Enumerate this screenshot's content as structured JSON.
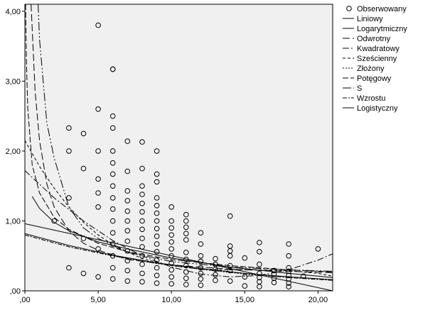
{
  "chart_data": {
    "type": "scatter",
    "title": "",
    "xlabel": "",
    "ylabel": "",
    "xlim": [
      0,
      21
    ],
    "ylim": [
      0,
      4.1
    ],
    "x_ticks": [
      {
        "value": 0,
        "label": ",00"
      },
      {
        "value": 5,
        "label": "5,00"
      },
      {
        "value": 10,
        "label": "10,00"
      },
      {
        "value": 15,
        "label": "15,00"
      },
      {
        "value": 20,
        "label": "20,00"
      }
    ],
    "y_ticks": [
      {
        "value": 0,
        "label": ",00"
      },
      {
        "value": 1,
        "label": "1,00"
      },
      {
        "value": 2,
        "label": "2,00"
      },
      {
        "value": 3,
        "label": "3,00"
      },
      {
        "value": 4,
        "label": "4,00"
      }
    ],
    "grid": false,
    "legend_position": "right",
    "plot_background": "#f0f0f0",
    "legend": [
      {
        "label": "Obserwowany",
        "marker": "circle"
      },
      {
        "label": "Liniowy",
        "dash": ""
      },
      {
        "label": "Logarytmiczny",
        "dash": ""
      },
      {
        "label": "Odwrotny",
        "dash": "10,4"
      },
      {
        "label": "Kwadratowy",
        "dash": "9,3,2,3"
      },
      {
        "label": "Sześcienny",
        "dash": "4,3"
      },
      {
        "label": "Złożony",
        "dash": "2,2"
      },
      {
        "label": "Potęgowy",
        "dash": "8,3"
      },
      {
        "label": "S",
        "dash": "12,3,2,3,2,3"
      },
      {
        "label": "Wzrostu",
        "dash": "6,2,2,2"
      },
      {
        "label": "Logistyczny",
        "dash": ""
      }
    ],
    "observed": [
      [
        2,
        1.0
      ],
      [
        3,
        2.33
      ],
      [
        3,
        2.0
      ],
      [
        3,
        1.33
      ],
      [
        3,
        0.33
      ],
      [
        4,
        2.25
      ],
      [
        4,
        1.75
      ],
      [
        4,
        0.75
      ],
      [
        4,
        0.25
      ],
      [
        5,
        3.8
      ],
      [
        5,
        2.6
      ],
      [
        5,
        2.0
      ],
      [
        5,
        1.6
      ],
      [
        5,
        1.4
      ],
      [
        5,
        1.2
      ],
      [
        5,
        0.6
      ],
      [
        5,
        0.2
      ],
      [
        6,
        3.17
      ],
      [
        6,
        3.17
      ],
      [
        6,
        2.5
      ],
      [
        6,
        2.33
      ],
      [
        6,
        2.0
      ],
      [
        6,
        1.83
      ],
      [
        6,
        1.67
      ],
      [
        6,
        1.5
      ],
      [
        6,
        1.33
      ],
      [
        6,
        1.17
      ],
      [
        6,
        1.0
      ],
      [
        6,
        0.83
      ],
      [
        6,
        0.67
      ],
      [
        6,
        0.5
      ],
      [
        6,
        0.33
      ],
      [
        6,
        0.17
      ],
      [
        7,
        2.14
      ],
      [
        7,
        1.71
      ],
      [
        7,
        1.43
      ],
      [
        7,
        1.29
      ],
      [
        7,
        1.14
      ],
      [
        7,
        1.0
      ],
      [
        7,
        0.86
      ],
      [
        7,
        0.71
      ],
      [
        7,
        0.57
      ],
      [
        7,
        0.43
      ],
      [
        7,
        0.29
      ],
      [
        7,
        0.14
      ],
      [
        8,
        2.13
      ],
      [
        8,
        1.75
      ],
      [
        8,
        1.5
      ],
      [
        8,
        1.38
      ],
      [
        8,
        1.25
      ],
      [
        8,
        1.13
      ],
      [
        8,
        1.0
      ],
      [
        8,
        0.88
      ],
      [
        8,
        0.75
      ],
      [
        8,
        0.63
      ],
      [
        8,
        0.5
      ],
      [
        8,
        0.38
      ],
      [
        8,
        0.25
      ],
      [
        8,
        0.13
      ],
      [
        9,
        2.0
      ],
      [
        9,
        1.67
      ],
      [
        9,
        1.56
      ],
      [
        9,
        1.33
      ],
      [
        9,
        1.22
      ],
      [
        9,
        1.11
      ],
      [
        9,
        1.0
      ],
      [
        9,
        0.89
      ],
      [
        9,
        0.78
      ],
      [
        9,
        0.67
      ],
      [
        9,
        0.56
      ],
      [
        9,
        0.44
      ],
      [
        9,
        0.33
      ],
      [
        9,
        0.22
      ],
      [
        9,
        0.11
      ],
      [
        10,
        1.2
      ],
      [
        10,
        1.0
      ],
      [
        10,
        0.9
      ],
      [
        10,
        0.8
      ],
      [
        10,
        0.7
      ],
      [
        10,
        0.6
      ],
      [
        10,
        0.5
      ],
      [
        10,
        0.4
      ],
      [
        10,
        0.3
      ],
      [
        10,
        0.2
      ],
      [
        10,
        0.1
      ],
      [
        11,
        1.09
      ],
      [
        11,
        1.0
      ],
      [
        11,
        0.91
      ],
      [
        11,
        0.82
      ],
      [
        11,
        0.73
      ],
      [
        11,
        0.55
      ],
      [
        11,
        0.45
      ],
      [
        11,
        0.36
      ],
      [
        11,
        0.27
      ],
      [
        11,
        0.18
      ],
      [
        11,
        0.09
      ],
      [
        12,
        0.83
      ],
      [
        12,
        0.67
      ],
      [
        12,
        0.5
      ],
      [
        12,
        0.42
      ],
      [
        12,
        0.33
      ],
      [
        12,
        0.25
      ],
      [
        12,
        0.17
      ],
      [
        12,
        0.08
      ],
      [
        13,
        0.46
      ],
      [
        13,
        0.38
      ],
      [
        13,
        0.31
      ],
      [
        13,
        0.23
      ],
      [
        13,
        0.15
      ],
      [
        14,
        1.07
      ],
      [
        14,
        0.64
      ],
      [
        14,
        0.57
      ],
      [
        14,
        0.5
      ],
      [
        14,
        0.36
      ],
      [
        14,
        0.29
      ],
      [
        14,
        0.14
      ],
      [
        15,
        0.47
      ],
      [
        15,
        0.2
      ],
      [
        15,
        0.07
      ],
      [
        16,
        0.69
      ],
      [
        16,
        0.56
      ],
      [
        16,
        0.38
      ],
      [
        16,
        0.25
      ],
      [
        16,
        0.19
      ],
      [
        16,
        0.13
      ],
      [
        16,
        0.06
      ],
      [
        17,
        0.29
      ],
      [
        17,
        0.24
      ],
      [
        17,
        0.18
      ],
      [
        17,
        0.12
      ],
      [
        18,
        0.67
      ],
      [
        18,
        0.5
      ],
      [
        18,
        0.33
      ],
      [
        18,
        0.28
      ],
      [
        18,
        0.22
      ],
      [
        18,
        0.17
      ],
      [
        18,
        0.11
      ],
      [
        18,
        0.06
      ],
      [
        19,
        0.21
      ],
      [
        20,
        0.6
      ]
    ],
    "fits": [
      {
        "name": "Liniowy",
        "dash": "",
        "points": [
          [
            0,
            0.96
          ],
          [
            21,
            0.0
          ]
        ]
      },
      {
        "name": "Logarytmiczny",
        "dash": "",
        "points": [
          [
            0.5,
            1.35
          ],
          [
            1,
            1.18
          ],
          [
            2,
            0.98
          ],
          [
            3,
            0.86
          ],
          [
            5,
            0.7
          ],
          [
            7,
            0.6
          ],
          [
            10,
            0.47
          ],
          [
            14,
            0.34
          ],
          [
            18,
            0.25
          ],
          [
            21,
            0.19
          ]
        ]
      },
      {
        "name": "Odwrotny",
        "dash": "10,4",
        "points": [
          [
            0.42,
            4.1
          ],
          [
            0.5,
            3.75
          ],
          [
            0.7,
            2.85
          ],
          [
            1,
            2.15
          ],
          [
            1.5,
            1.53
          ],
          [
            2,
            1.2
          ],
          [
            3,
            0.86
          ],
          [
            4,
            0.68
          ],
          [
            5,
            0.58
          ],
          [
            7,
            0.45
          ],
          [
            10,
            0.37
          ],
          [
            14,
            0.31
          ],
          [
            18,
            0.28
          ],
          [
            21,
            0.26
          ]
        ]
      },
      {
        "name": "Kwadratowy",
        "dash": "9,3,2,3",
        "points": [
          [
            0,
            1.72
          ],
          [
            2,
            1.33
          ],
          [
            4,
            1.0
          ],
          [
            6,
            0.72
          ],
          [
            8,
            0.5
          ],
          [
            10,
            0.34
          ],
          [
            12,
            0.24
          ],
          [
            14,
            0.2
          ],
          [
            16,
            0.22
          ],
          [
            18,
            0.3
          ],
          [
            20,
            0.44
          ],
          [
            21,
            0.53
          ]
        ]
      },
      {
        "name": "Sześcienny",
        "dash": "4,3",
        "points": [
          [
            0,
            2.15
          ],
          [
            1,
            1.78
          ],
          [
            2,
            1.47
          ],
          [
            3,
            1.2
          ],
          [
            4,
            0.98
          ],
          [
            5,
            0.8
          ],
          [
            6,
            0.66
          ],
          [
            8,
            0.46
          ],
          [
            10,
            0.36
          ],
          [
            12,
            0.31
          ],
          [
            14,
            0.3
          ],
          [
            16,
            0.3
          ],
          [
            18,
            0.29
          ],
          [
            20,
            0.25
          ],
          [
            21,
            0.21
          ]
        ]
      },
      {
        "name": "Złożony",
        "dash": "2,2",
        "points": [
          [
            0,
            0.8
          ],
          [
            3,
            0.63
          ],
          [
            6,
            0.5
          ],
          [
            9,
            0.39
          ],
          [
            12,
            0.31
          ],
          [
            15,
            0.24
          ],
          [
            18,
            0.19
          ],
          [
            21,
            0.15
          ]
        ]
      },
      {
        "name": "Potęgowy",
        "dash": "8,3",
        "points": [
          [
            0.05,
            4.1
          ],
          [
            0.1,
            3.3
          ],
          [
            0.2,
            2.6
          ],
          [
            0.5,
            1.8
          ],
          [
            1,
            1.4
          ],
          [
            2,
            1.05
          ],
          [
            3,
            0.88
          ],
          [
            5,
            0.68
          ],
          [
            7,
            0.56
          ],
          [
            10,
            0.45
          ],
          [
            14,
            0.36
          ],
          [
            18,
            0.3
          ],
          [
            21,
            0.27
          ]
        ]
      },
      {
        "name": "S",
        "dash": "12,3,2,3,2,3",
        "points": [
          [
            0.9,
            4.1
          ],
          [
            1,
            3.6
          ],
          [
            1.5,
            2.4
          ],
          [
            2,
            1.9
          ],
          [
            3,
            1.2
          ],
          [
            4,
            0.9
          ],
          [
            5,
            0.75
          ],
          [
            7,
            0.55
          ],
          [
            10,
            0.42
          ],
          [
            14,
            0.34
          ],
          [
            18,
            0.3
          ],
          [
            21,
            0.28
          ]
        ]
      },
      {
        "name": "Wzrostu",
        "dash": "6,2,2,2",
        "points": [
          [
            0,
            0.8
          ],
          [
            3,
            0.63
          ],
          [
            6,
            0.5
          ],
          [
            9,
            0.4
          ],
          [
            12,
            0.31
          ],
          [
            15,
            0.25
          ],
          [
            18,
            0.19
          ],
          [
            21,
            0.15
          ]
        ]
      },
      {
        "name": "Logistyczny",
        "dash": "",
        "points": [
          [
            0,
            0.82
          ],
          [
            3,
            0.65
          ],
          [
            6,
            0.51
          ],
          [
            9,
            0.4
          ],
          [
            12,
            0.32
          ],
          [
            15,
            0.25
          ],
          [
            18,
            0.2
          ],
          [
            21,
            0.16
          ]
        ]
      }
    ]
  }
}
